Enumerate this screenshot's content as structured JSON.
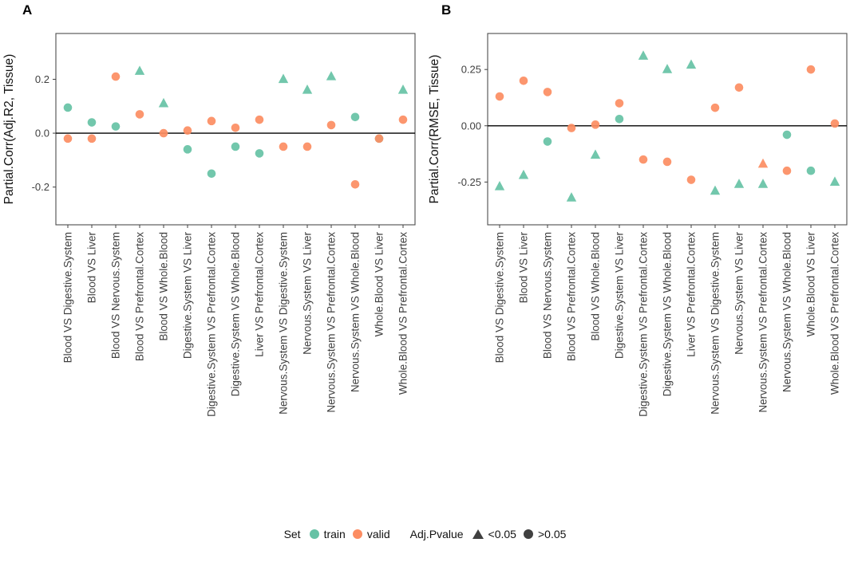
{
  "figure": {
    "legend": {
      "set_label": "Set",
      "items": [
        {
          "label": "train",
          "color": "#66C2A5"
        },
        {
          "label": "valid",
          "color": "#FC8D62"
        }
      ],
      "pvalue_label": "Adj.Pvalue",
      "pvalue_items": [
        {
          "label": "<0.05",
          "shape": "triangle"
        },
        {
          "label": ">0.05",
          "shape": "circle"
        }
      ],
      "shape_color": "#404040"
    },
    "colors": {
      "train": "#66C2A5",
      "valid": "#FC8D62",
      "axis_text": "#404040",
      "panel_border": "#4d4d4d",
      "zero_line": "#000000"
    }
  },
  "chart_data": [
    {
      "type": "scatter",
      "panel_label": "A",
      "ylabel": "Partial.Corr(Adj.R2, Tissue)",
      "ylim": [
        -0.34,
        0.37
      ],
      "yticks": [
        0.2,
        0.0,
        -0.2
      ],
      "ytick_labels": [
        "0.2",
        "0.0",
        "-0.2"
      ],
      "zero_line": 0.0,
      "legend_position": "bottom",
      "grid": false,
      "categories": [
        "Blood VS Digestive.System",
        "Blood VS Liver",
        "Blood VS Nervous.System",
        "Blood VS Prefrontal.Cortex",
        "Blood VS Whole.Blood",
        "Digestive.System VS Liver",
        "Digestive.System VS Prefrontal.Cortex",
        "Digestive.System VS Whole.Blood",
        "Liver VS Prefrontal.Cortex",
        "Nervous.System VS Digestive.System",
        "Nervous.System VS Liver",
        "Nervous.System VS Prefrontal.Cortex",
        "Nervous.System VS Whole.Blood",
        "Whole.Blood VS Liver",
        "Whole.Blood VS Prefrontal.Cortex"
      ],
      "series": [
        {
          "name": "train",
          "color": "#66C2A5",
          "values": [
            0.095,
            0.04,
            0.025,
            0.23,
            0.11,
            -0.06,
            -0.15,
            -0.05,
            -0.075,
            0.2,
            0.16,
            0.21,
            0.06,
            -0.02,
            0.16
          ],
          "shapes": [
            "circle",
            "circle",
            "circle",
            "triangle",
            "triangle",
            "circle",
            "circle",
            "circle",
            "circle",
            "triangle",
            "triangle",
            "triangle",
            "circle",
            "circle",
            "triangle"
          ]
        },
        {
          "name": "valid",
          "color": "#FC8D62",
          "values": [
            -0.02,
            -0.02,
            0.21,
            0.07,
            0.0,
            0.01,
            0.045,
            0.02,
            0.05,
            -0.05,
            -0.05,
            0.03,
            -0.19,
            -0.02,
            0.05
          ],
          "shapes": [
            "circle",
            "circle",
            "circle",
            "circle",
            "circle",
            "circle",
            "circle",
            "circle",
            "circle",
            "circle",
            "circle",
            "circle",
            "circle",
            "circle",
            "circle"
          ]
        }
      ]
    },
    {
      "type": "scatter",
      "panel_label": "B",
      "ylabel": "Partial.Corr(RMSE, Tissue)",
      "ylim": [
        -0.44,
        0.41
      ],
      "yticks": [
        0.25,
        0.0,
        -0.25
      ],
      "ytick_labels": [
        "0.25",
        "0.00",
        "-0.25"
      ],
      "zero_line": 0.0,
      "legend_position": "bottom",
      "grid": false,
      "categories": [
        "Blood VS Digestive.System",
        "Blood VS Liver",
        "Blood VS Nervous.System",
        "Blood VS Prefrontal.Cortex",
        "Blood VS Whole.Blood",
        "Digestive.System VS Liver",
        "Digestive.System VS Prefrontal.Cortex",
        "Digestive.System VS Whole.Blood",
        "Liver VS Prefrontal.Cortex",
        "Nervous.System VS Digestive.System",
        "Nervous.System VS Liver",
        "Nervous.System VS Prefrontal.Cortex",
        "Nervous.System VS Whole.Blood",
        "Whole.Blood VS Liver",
        "Whole.Blood VS Prefrontal.Cortex"
      ],
      "series": [
        {
          "name": "train",
          "color": "#66C2A5",
          "values": [
            -0.27,
            -0.22,
            -0.07,
            -0.32,
            -0.13,
            0.03,
            0.31,
            0.25,
            0.27,
            -0.29,
            -0.26,
            -0.26,
            -0.04,
            -0.2,
            -0.25
          ],
          "shapes": [
            "triangle",
            "triangle",
            "circle",
            "triangle",
            "triangle",
            "circle",
            "triangle",
            "triangle",
            "triangle",
            "triangle",
            "triangle",
            "triangle",
            "circle",
            "circle",
            "triangle"
          ]
        },
        {
          "name": "valid",
          "color": "#FC8D62",
          "values": [
            0.13,
            0.2,
            0.15,
            -0.01,
            0.005,
            0.1,
            -0.15,
            -0.16,
            -0.24,
            0.08,
            0.17,
            -0.17,
            -0.2,
            0.25,
            0.01
          ],
          "shapes": [
            "circle",
            "circle",
            "circle",
            "circle",
            "circle",
            "circle",
            "circle",
            "circle",
            "circle",
            "circle",
            "circle",
            "triangle",
            "circle",
            "circle",
            "circle"
          ]
        }
      ]
    }
  ]
}
